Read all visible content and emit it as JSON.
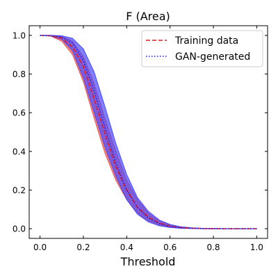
{
  "chart_data": {
    "type": "line",
    "title": "F (Area)",
    "xlabel": "Threshold",
    "ylabel": "",
    "xlim": [
      -0.05,
      1.05
    ],
    "ylim": [
      -0.05,
      1.05
    ],
    "xticks": [
      0.0,
      0.2,
      0.4,
      0.6,
      0.8,
      1.0
    ],
    "yticks": [
      0.0,
      0.2,
      0.4,
      0.6,
      0.8,
      1.0
    ],
    "xtick_labels": [
      "0.0",
      "0.2",
      "0.4",
      "0.6",
      "0.8",
      "1.0"
    ],
    "ytick_labels": [
      "0.0",
      "0.2",
      "0.4",
      "0.6",
      "0.8",
      "1.0"
    ],
    "grid": false,
    "legend_position": "top-right",
    "x": [
      0.0,
      0.05,
      0.1,
      0.15,
      0.2,
      0.25,
      0.3,
      0.35,
      0.4,
      0.45,
      0.5,
      0.55,
      0.6,
      0.65,
      0.7,
      0.75,
      0.8,
      0.85,
      0.9,
      0.95,
      1.0
    ],
    "series": [
      {
        "name": "Training data",
        "style": "dashed",
        "color": "#e8191e",
        "band_color": "#ef5350",
        "values": [
          1.0,
          0.998,
          0.985,
          0.94,
          0.84,
          0.67,
          0.49,
          0.32,
          0.2,
          0.11,
          0.06,
          0.03,
          0.013,
          0.006,
          0.003,
          0.001,
          0.0005,
          0.0,
          0.0,
          0.0,
          0.0
        ],
        "band_lower": [
          1.0,
          0.996,
          0.97,
          0.9,
          0.76,
          0.57,
          0.39,
          0.25,
          0.15,
          0.08,
          0.04,
          0.02,
          0.008,
          0.003,
          0.001,
          0.0005,
          0.0,
          0.0,
          0.0,
          0.0,
          0.0
        ],
        "band_upper": [
          1.0,
          0.999,
          0.995,
          0.97,
          0.89,
          0.75,
          0.57,
          0.4,
          0.25,
          0.15,
          0.08,
          0.04,
          0.02,
          0.009,
          0.004,
          0.002,
          0.001,
          0.0,
          0.0,
          0.0,
          0.0
        ]
      },
      {
        "name": "GAN-generated",
        "style": "dotted",
        "color": "#1a1ad6",
        "band_color": "#4a4aff",
        "values": [
          1.0,
          0.999,
          0.992,
          0.96,
          0.87,
          0.71,
          0.52,
          0.34,
          0.2,
          0.11,
          0.055,
          0.026,
          0.012,
          0.005,
          0.002,
          0.001,
          0.0005,
          0.0,
          0.0,
          0.0,
          0.0
        ],
        "band_lower": [
          1.0,
          0.997,
          0.98,
          0.92,
          0.78,
          0.6,
          0.42,
          0.27,
          0.15,
          0.075,
          0.035,
          0.015,
          0.006,
          0.002,
          0.001,
          0.0,
          0.0,
          0.0,
          0.0,
          0.0,
          0.0
        ],
        "band_upper": [
          1.0,
          1.0,
          0.998,
          0.985,
          0.93,
          0.81,
          0.63,
          0.44,
          0.28,
          0.16,
          0.09,
          0.045,
          0.022,
          0.01,
          0.005,
          0.002,
          0.001,
          0.0005,
          0.0,
          0.0,
          0.0
        ]
      }
    ]
  }
}
